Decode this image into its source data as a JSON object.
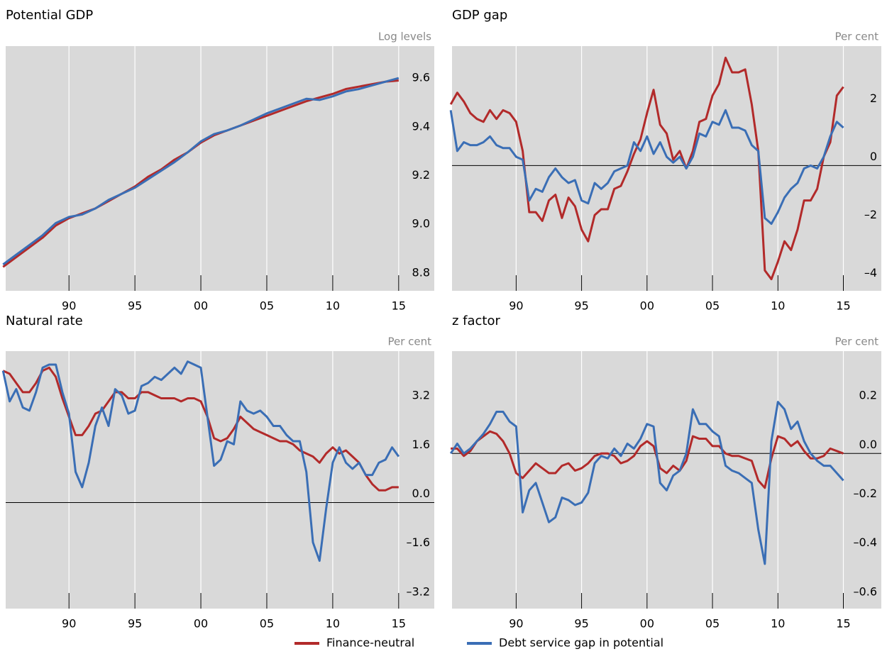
{
  "chart_data": [
    {
      "type": "line",
      "title": "Potential GDP",
      "unit": "Log levels",
      "x": [
        1985,
        1986,
        1987,
        1988,
        1989,
        1990,
        1991,
        1992,
        1993,
        1994,
        1995,
        1996,
        1997,
        1998,
        1999,
        2000,
        2001,
        2002,
        2003,
        2004,
        2005,
        2006,
        2007,
        2008,
        2009,
        2010,
        2011,
        2012,
        2013,
        2014,
        2015
      ],
      "series": [
        {
          "name": "Finance-neutral",
          "color": "#b22a2a",
          "values": [
            8.86,
            8.9,
            8.94,
            8.98,
            9.03,
            9.06,
            9.08,
            9.1,
            9.13,
            9.16,
            9.19,
            9.23,
            9.26,
            9.3,
            9.33,
            9.37,
            9.4,
            9.42,
            9.44,
            9.46,
            9.48,
            9.5,
            9.52,
            9.54,
            9.555,
            9.57,
            9.59,
            9.6,
            9.61,
            9.62,
            9.625
          ]
        },
        {
          "name": "Debt service gap in potential",
          "color": "#3a6eb5",
          "values": [
            8.87,
            8.91,
            8.95,
            8.99,
            9.04,
            9.065,
            9.075,
            9.1,
            9.135,
            9.16,
            9.185,
            9.22,
            9.255,
            9.29,
            9.33,
            9.375,
            9.405,
            9.42,
            9.44,
            9.465,
            9.49,
            9.51,
            9.53,
            9.55,
            9.545,
            9.56,
            9.58,
            9.59,
            9.605,
            9.62,
            9.635
          ]
        }
      ],
      "xlim": [
        1985.2,
        2017.7
      ],
      "xticks": [
        {
          "value": 1990,
          "label": "90"
        },
        {
          "value": 1995,
          "label": "95"
        },
        {
          "value": 2000,
          "label": "00"
        },
        {
          "value": 2005,
          "label": "05"
        },
        {
          "value": 2010,
          "label": "10"
        },
        {
          "value": 2015,
          "label": "15"
        }
      ],
      "ylim": [
        8.762,
        9.766
      ],
      "yticks": [
        9.6,
        9.4,
        9.2,
        {
          "value": 9,
          "label": "9.0"
        },
        8.8
      ]
    },
    {
      "type": "line",
      "title": "GDP gap",
      "unit": "Per cent",
      "zero_line": true,
      "x": [
        1985,
        1985.5,
        1986,
        1986.5,
        1987,
        1987.5,
        1988,
        1988.5,
        1989,
        1989.5,
        1990,
        1990.5,
        1991,
        1991.5,
        1992,
        1992.5,
        1993,
        1993.5,
        1994,
        1994.5,
        1995,
        1995.5,
        1996,
        1996.5,
        1997,
        1997.5,
        1998,
        1998.5,
        1999,
        1999.5,
        2000,
        2000.5,
        2001,
        2001.5,
        2002,
        2002.5,
        2003,
        2003.5,
        2004,
        2004.5,
        2005,
        2005.5,
        2006,
        2006.5,
        2007,
        2007.5,
        2008,
        2008.5,
        2009,
        2009.5,
        2010,
        2010.5,
        2011,
        2011.5,
        2012,
        2012.5,
        2013,
        2013.5,
        2014,
        2014.5,
        2015
      ],
      "series": [
        {
          "name": "Finance-neutral",
          "color": "#b22a2a",
          "values": [
            2.1,
            2.5,
            2.2,
            1.8,
            1.6,
            1.5,
            1.9,
            1.6,
            1.9,
            1.8,
            1.5,
            0.5,
            -1.6,
            -1.6,
            -1.9,
            -1.2,
            -1.0,
            -1.8,
            -1.1,
            -1.4,
            -2.2,
            -2.6,
            -1.7,
            -1.5,
            -1.5,
            -0.8,
            -0.7,
            -0.2,
            0.4,
            0.9,
            1.8,
            2.6,
            1.4,
            1.1,
            0.2,
            0.5,
            -0.1,
            0.5,
            1.5,
            1.6,
            2.4,
            2.8,
            3.7,
            3.2,
            3.2,
            3.3,
            2.1,
            0.5,
            -3.6,
            -3.9,
            -3.3,
            -2.6,
            -2.9,
            -2.2,
            -1.2,
            -1.2,
            -0.8,
            0.3,
            0.8,
            2.4,
            2.7
          ]
        },
        {
          "name": "Debt service gap in potential",
          "color": "#3a6eb5",
          "values": [
            1.9,
            0.5,
            0.8,
            0.7,
            0.7,
            0.8,
            1.0,
            0.7,
            0.6,
            0.6,
            0.3,
            0.2,
            -1.2,
            -0.8,
            -0.9,
            -0.4,
            -0.1,
            -0.4,
            -0.6,
            -0.5,
            -1.2,
            -1.3,
            -0.6,
            -0.8,
            -0.6,
            -0.2,
            -0.1,
            0.0,
            0.8,
            0.5,
            1.0,
            0.4,
            0.8,
            0.3,
            0.1,
            0.3,
            -0.1,
            0.3,
            1.1,
            1.0,
            1.5,
            1.4,
            1.9,
            1.3,
            1.3,
            1.2,
            0.7,
            0.5,
            -1.8,
            -2.0,
            -1.6,
            -1.1,
            -0.8,
            -0.6,
            -0.1,
            0.0,
            -0.1,
            0.3,
            1.0,
            1.5,
            1.3
          ]
        }
      ],
      "xlim": [
        1985.1,
        2017.9
      ],
      "xticks": [
        {
          "value": 1990,
          "label": "90"
        },
        {
          "value": 1995,
          "label": "95"
        },
        {
          "value": 2000,
          "label": "00"
        },
        {
          "value": 2005,
          "label": "05"
        },
        {
          "value": 2010,
          "label": "10"
        },
        {
          "value": 2015,
          "label": "15"
        }
      ],
      "ylim": [
        -4.3,
        4.1
      ],
      "yticks": [
        2,
        0,
        {
          "value": -2,
          "label": "–2"
        },
        {
          "value": -4,
          "label": "–4"
        }
      ]
    },
    {
      "type": "line",
      "title": "Natural rate",
      "unit": "Per cent",
      "zero_line": true,
      "x": [
        1985,
        1985.5,
        1986,
        1986.5,
        1987,
        1987.5,
        1988,
        1988.5,
        1989,
        1989.5,
        1990,
        1990.5,
        1991,
        1991.5,
        1992,
        1992.5,
        1993,
        1993.5,
        1994,
        1994.5,
        1995,
        1995.5,
        1996,
        1996.5,
        1997,
        1997.5,
        1998,
        1998.5,
        1999,
        1999.5,
        2000,
        2000.5,
        2001,
        2001.5,
        2002,
        2002.5,
        2003,
        2003.5,
        2004,
        2004.5,
        2005,
        2005.5,
        2006,
        2006.5,
        2007,
        2007.5,
        2008,
        2008.5,
        2009,
        2009.5,
        2010,
        2010.5,
        2011,
        2011.5,
        2012,
        2012.5,
        2013,
        2013.5,
        2014,
        2014.5,
        2015
      ],
      "series": [
        {
          "name": "Finance-neutral",
          "color": "#b22a2a",
          "values": [
            4.3,
            4.2,
            3.9,
            3.6,
            3.6,
            3.9,
            4.3,
            4.4,
            4.1,
            3.4,
            2.8,
            2.2,
            2.2,
            2.5,
            2.9,
            3.0,
            3.3,
            3.6,
            3.6,
            3.4,
            3.4,
            3.6,
            3.6,
            3.5,
            3.4,
            3.4,
            3.4,
            3.3,
            3.4,
            3.4,
            3.3,
            2.8,
            2.1,
            2.0,
            2.1,
            2.4,
            2.8,
            2.6,
            2.4,
            2.3,
            2.2,
            2.1,
            2.0,
            2.0,
            1.9,
            1.7,
            1.6,
            1.5,
            1.3,
            1.6,
            1.8,
            1.6,
            1.7,
            1.5,
            1.3,
            0.9,
            0.6,
            0.4,
            0.4,
            0.5,
            0.5
          ]
        },
        {
          "name": "Debt service gap in potential",
          "color": "#3a6eb5",
          "values": [
            4.3,
            3.3,
            3.7,
            3.1,
            3.0,
            3.6,
            4.4,
            4.5,
            4.5,
            3.6,
            2.9,
            1.0,
            0.5,
            1.3,
            2.5,
            3.1,
            2.5,
            3.7,
            3.5,
            2.9,
            3.0,
            3.8,
            3.9,
            4.1,
            4.0,
            4.2,
            4.4,
            4.2,
            4.6,
            4.5,
            4.4,
            2.8,
            1.2,
            1.4,
            2.0,
            1.9,
            3.3,
            3.0,
            2.9,
            3.0,
            2.8,
            2.5,
            2.5,
            2.2,
            2.0,
            2.0,
            1.0,
            -1.3,
            -1.9,
            -0.2,
            1.3,
            1.8,
            1.3,
            1.1,
            1.3,
            0.9,
            0.9,
            1.3,
            1.4,
            1.8,
            1.5
          ]
        }
      ],
      "xlim": [
        1985.2,
        2017.7
      ],
      "xticks": [
        {
          "value": 1990,
          "label": "90"
        },
        {
          "value": 1995,
          "label": "95"
        },
        {
          "value": 2000,
          "label": "00"
        },
        {
          "value": 2005,
          "label": "05"
        },
        {
          "value": 2010,
          "label": "10"
        },
        {
          "value": 2015,
          "label": "15"
        }
      ],
      "ylim": [
        -3.46,
        4.94
      ],
      "yticks": [
        3.2,
        1.6,
        {
          "value": 0,
          "label": "0.0"
        },
        {
          "value": -1.6,
          "label": "–1.6"
        },
        {
          "value": -3.2,
          "label": "–3.2"
        }
      ]
    },
    {
      "type": "line",
      "title": "z factor",
      "unit": "Per cent",
      "zero_line": true,
      "x": [
        1985,
        1985.5,
        1986,
        1986.5,
        1987,
        1987.5,
        1988,
        1988.5,
        1989,
        1989.5,
        1990,
        1990.5,
        1991,
        1991.5,
        1992,
        1992.5,
        1993,
        1993.5,
        1994,
        1994.5,
        1995,
        1995.5,
        1996,
        1996.5,
        1997,
        1997.5,
        1998,
        1998.5,
        1999,
        1999.5,
        2000,
        2000.5,
        2001,
        2001.5,
        2002,
        2002.5,
        2003,
        2003.5,
        2004,
        2004.5,
        2005,
        2005.5,
        2006,
        2006.5,
        2007,
        2007.5,
        2008,
        2008.5,
        2009,
        2009.5,
        2010,
        2010.5,
        2011,
        2011.5,
        2012,
        2012.5,
        2013,
        2013.5,
        2014,
        2014.5,
        2015
      ],
      "series": [
        {
          "name": "Finance-neutral",
          "color": "#b22a2a",
          "values": [
            0.02,
            0.02,
            -0.01,
            0.01,
            0.05,
            0.07,
            0.09,
            0.08,
            0.05,
            0.0,
            -0.08,
            -0.1,
            -0.07,
            -0.04,
            -0.06,
            -0.08,
            -0.08,
            -0.05,
            -0.04,
            -0.07,
            -0.06,
            -0.04,
            -0.01,
            0.0,
            0.0,
            -0.01,
            -0.04,
            -0.03,
            -0.01,
            0.03,
            0.05,
            0.03,
            -0.06,
            -0.08,
            -0.05,
            -0.07,
            -0.03,
            0.07,
            0.06,
            0.06,
            0.03,
            0.03,
            0.0,
            -0.01,
            -0.01,
            -0.02,
            -0.03,
            -0.11,
            -0.14,
            -0.02,
            0.07,
            0.06,
            0.03,
            0.05,
            0.01,
            -0.02,
            -0.02,
            -0.01,
            0.02,
            0.01,
            0.0
          ]
        },
        {
          "name": "Debt service gap in potential",
          "color": "#3a6eb5",
          "values": [
            0.0,
            0.04,
            0.0,
            0.02,
            0.05,
            0.08,
            0.12,
            0.17,
            0.17,
            0.13,
            0.11,
            -0.24,
            -0.15,
            -0.12,
            -0.2,
            -0.28,
            -0.26,
            -0.18,
            -0.19,
            -0.21,
            -0.2,
            -0.16,
            -0.04,
            -0.01,
            -0.02,
            0.02,
            -0.01,
            0.04,
            0.02,
            0.06,
            0.12,
            0.11,
            -0.12,
            -0.15,
            -0.09,
            -0.07,
            0.0,
            0.18,
            0.12,
            0.12,
            0.09,
            0.07,
            -0.05,
            -0.07,
            -0.08,
            -0.1,
            -0.12,
            -0.31,
            -0.45,
            0.05,
            0.21,
            0.18,
            0.1,
            0.13,
            0.05,
            0.0,
            -0.03,
            -0.05,
            -0.05,
            -0.08,
            -0.11
          ]
        }
      ],
      "xlim": [
        1985.1,
        2017.9
      ],
      "xticks": [
        {
          "value": 1990,
          "label": "90"
        },
        {
          "value": 1995,
          "label": "95"
        },
        {
          "value": 2000,
          "label": "00"
        },
        {
          "value": 2005,
          "label": "05"
        },
        {
          "value": 2010,
          "label": "10"
        },
        {
          "value": 2015,
          "label": "15"
        }
      ],
      "ylim": [
        -0.632,
        0.417
      ],
      "yticks": [
        0.2,
        {
          "value": 0,
          "label": "0.0"
        },
        {
          "value": -0.2,
          "label": "–0.2"
        },
        {
          "value": -0.4,
          "label": "–0.4"
        },
        {
          "value": -0.6,
          "label": "–0.6"
        }
      ]
    }
  ]
}
